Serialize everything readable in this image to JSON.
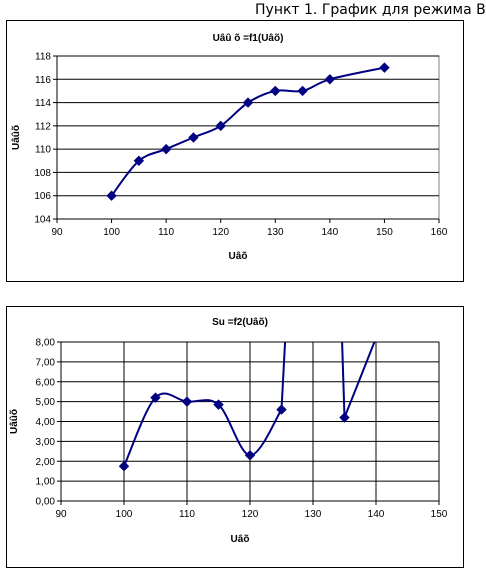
{
  "heading": "Пункт 1. График для режима В",
  "chart_data": [
    {
      "type": "line",
      "title": "Uâû õ =f1(Uâõ)",
      "xlabel": "Uâõ",
      "ylabel": "Uâûõ",
      "xlim": [
        90,
        160
      ],
      "ylim": [
        104,
        118
      ],
      "xticks": [
        90,
        100,
        110,
        120,
        130,
        140,
        150,
        160
      ],
      "yticks": [
        104,
        106,
        108,
        110,
        112,
        114,
        116,
        118
      ],
      "grid": true,
      "legend": "none",
      "color": "#000080",
      "series": [
        {
          "x": [
            100,
            105,
            110,
            115,
            120,
            125,
            130,
            135,
            140,
            150
          ],
          "values": [
            106,
            109,
            110,
            111,
            112,
            114,
            115,
            115,
            116,
            117
          ]
        }
      ]
    },
    {
      "type": "line",
      "title": "Su =f2(Uâõ)",
      "xlabel": "Uâõ",
      "ylabel": "Uâûõ",
      "xlim": [
        90,
        150
      ],
      "ylim": [
        0,
        8
      ],
      "xticks": [
        90,
        100,
        110,
        120,
        130,
        140,
        150
      ],
      "yticks": [
        "0,00",
        "1,00",
        "2,00",
        "3,00",
        "4,00",
        "5,00",
        "6,00",
        "7,00",
        "8,00"
      ],
      "grid": true,
      "legend": "none",
      "color": "#000080",
      "series": [
        {
          "x": [
            100,
            105,
            110,
            115,
            120,
            125,
            135,
            140
          ],
          "values": [
            1.75,
            5.2,
            5.0,
            4.85,
            2.3,
            4.6,
            4.2,
            8.2
          ]
        }
      ]
    }
  ]
}
